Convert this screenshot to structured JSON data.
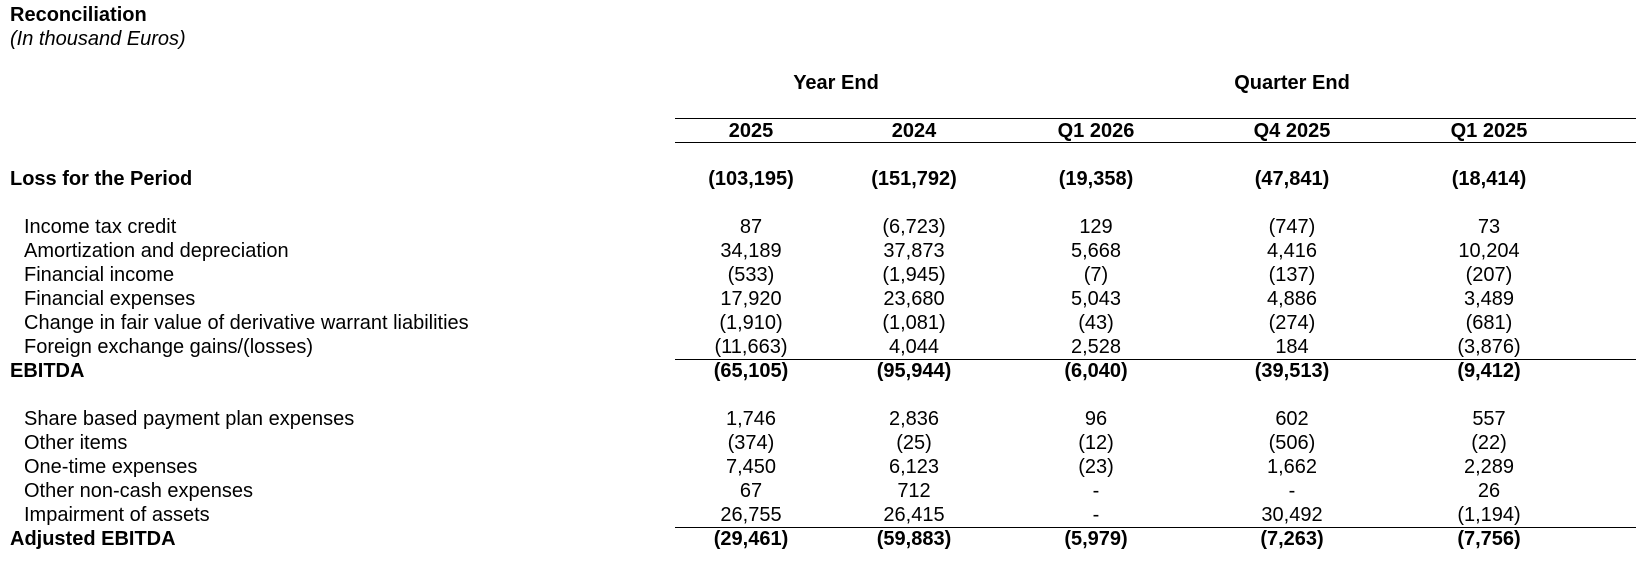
{
  "title": "Reconciliation",
  "subtitle": "(In thousand Euros)",
  "groups": [
    {
      "label": "Year End"
    },
    {
      "label": "Quarter End"
    }
  ],
  "columns": [
    "2025",
    "2024",
    "Q1 2026",
    "Q4 2025",
    "Q1 2025"
  ],
  "rows": [
    {
      "label": "Loss for the Period",
      "bold": true,
      "values": [
        "(103,195)",
        "(151,792)",
        "(19,358)",
        "(47,841)",
        "(18,414)"
      ]
    },
    {
      "label": "Income tax credit",
      "bold": false,
      "values": [
        "87",
        "(6,723)",
        "129",
        "(747)",
        "73"
      ]
    },
    {
      "label": "Amortization and depreciation",
      "bold": false,
      "values": [
        "34,189",
        "37,873",
        "5,668",
        "4,416",
        "10,204"
      ]
    },
    {
      "label": "Financial income",
      "bold": false,
      "values": [
        "(533)",
        "(1,945)",
        "(7)",
        "(137)",
        "(207)"
      ]
    },
    {
      "label": "Financial expenses",
      "bold": false,
      "values": [
        "17,920",
        "23,680",
        "5,043",
        "4,886",
        "3,489"
      ]
    },
    {
      "label": "Change in fair value of derivative warrant liabilities",
      "bold": false,
      "values": [
        "(1,910)",
        "(1,081)",
        "(43)",
        "(274)",
        "(681)"
      ]
    },
    {
      "label": "Foreign exchange gains/(losses)",
      "bold": false,
      "values": [
        "(11,663)",
        "4,044",
        "2,528",
        "184",
        "(3,876)"
      ]
    },
    {
      "label": "EBITDA",
      "bold": true,
      "values": [
        "(65,105)",
        "(95,944)",
        "(6,040)",
        "(39,513)",
        "(9,412)"
      ]
    },
    {
      "label": "Share based payment plan expenses",
      "bold": false,
      "values": [
        "1,746",
        "2,836",
        "96",
        "602",
        "557"
      ]
    },
    {
      "label": "Other items",
      "bold": false,
      "values": [
        "(374)",
        "(25)",
        "(12)",
        "(506)",
        "(22)"
      ]
    },
    {
      "label": "One-time expenses",
      "bold": false,
      "values": [
        "7,450",
        "6,123",
        "(23)",
        "1,662",
        "2,289"
      ]
    },
    {
      "label": "Other non-cash expenses",
      "bold": false,
      "values": [
        "67",
        "712",
        "-",
        "-",
        "26"
      ]
    },
    {
      "label": "Impairment of assets",
      "bold": false,
      "values": [
        "26,755",
        "26,415",
        "-",
        "30,492",
        "(1,194)"
      ]
    },
    {
      "label": "Adjusted EBITDA",
      "bold": true,
      "values": [
        "(29,461)",
        "(59,883)",
        "(5,979)",
        "(7,263)",
        "(7,756)"
      ]
    }
  ]
}
